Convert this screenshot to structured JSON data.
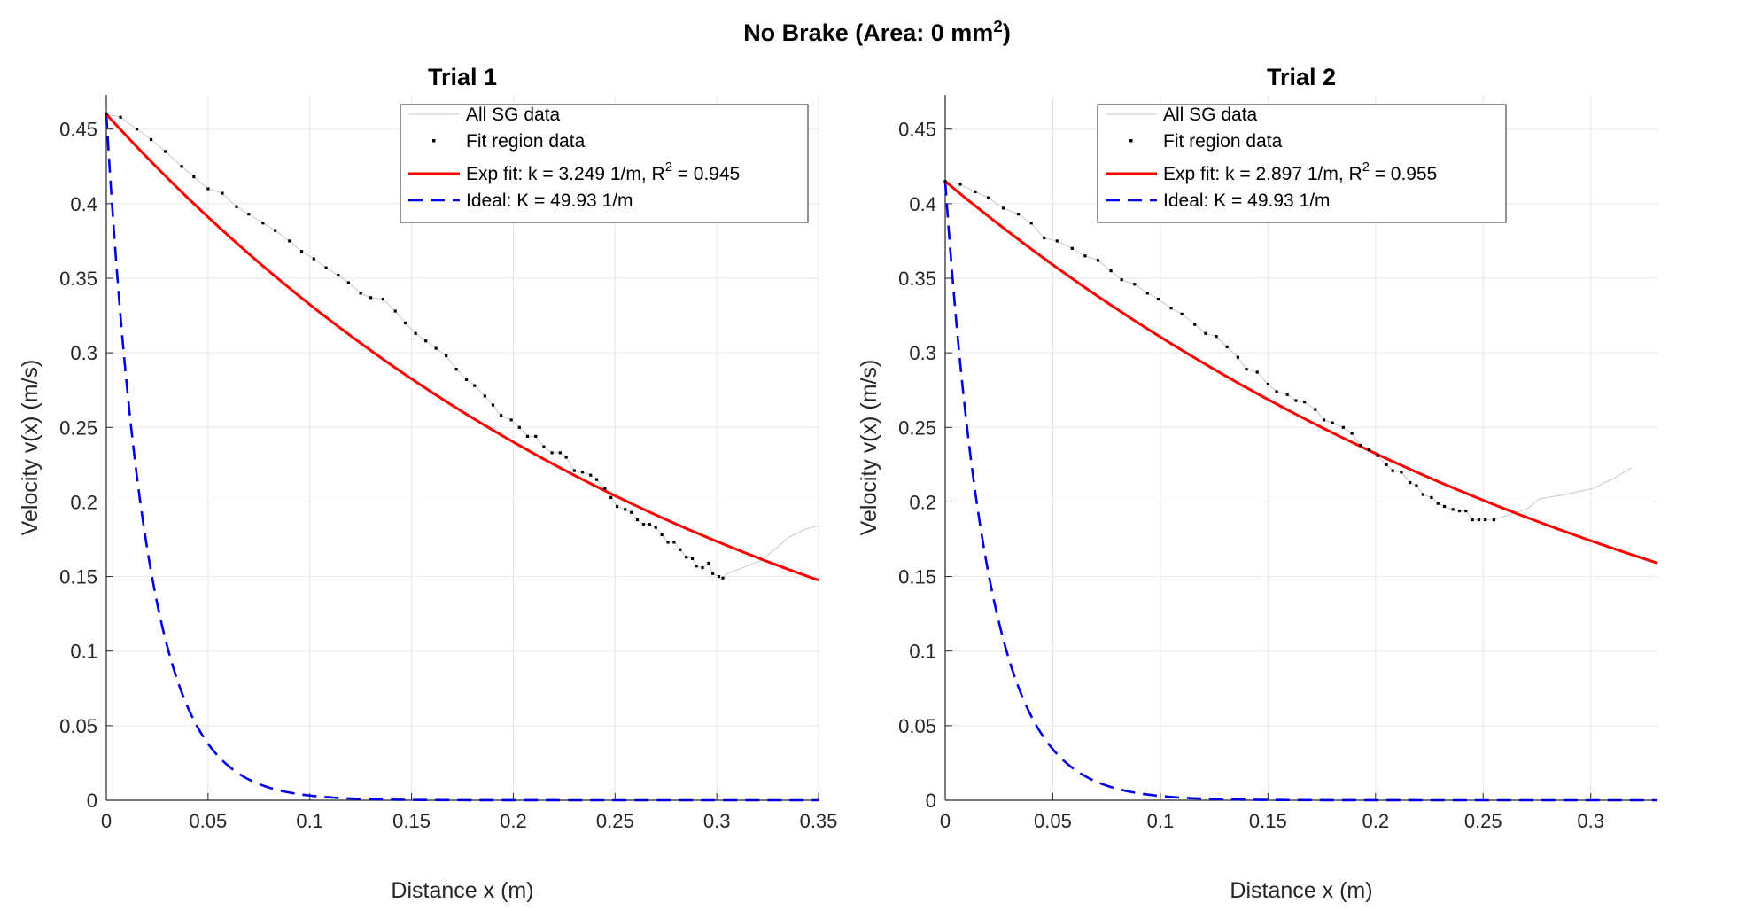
{
  "figure_title": "No Brake (Area: 0 mm^2)",
  "chart_data": [
    {
      "type": "line",
      "title": "Trial 1",
      "xlabel": "Distance x (m)",
      "ylabel": "Velocity v(x) (m/s)",
      "xlim": [
        0,
        0.35
      ],
      "ylim": [
        0,
        0.473
      ],
      "xticks": [
        "0",
        "0.05",
        "0.1",
        "0.15",
        "0.2",
        "0.25",
        "0.3",
        "0.35"
      ],
      "yticks": [
        "0",
        "0.05",
        "0.1",
        "0.15",
        "0.2",
        "0.25",
        "0.3",
        "0.35",
        "0.4",
        "0.45"
      ],
      "grid": true,
      "legend_placement": "top-right",
      "fit": {
        "v0": 0.46,
        "k": 3.249,
        "r2": 0.945
      },
      "ideal": {
        "v0": 0.46,
        "K": 49.93
      },
      "fit_region": {
        "x": [
          0,
          0.007,
          0.015,
          0.022,
          0.029,
          0.037,
          0.043,
          0.05,
          0.057,
          0.064,
          0.07,
          0.077,
          0.083,
          0.09,
          0.096,
          0.102,
          0.108,
          0.114,
          0.119,
          0.125,
          0.13,
          0.136,
          0.142,
          0.147,
          0.152,
          0.157,
          0.162,
          0.167,
          0.172,
          0.177,
          0.181,
          0.186,
          0.19,
          0.194,
          0.199,
          0.203,
          0.207,
          0.211,
          0.215,
          0.219,
          0.223,
          0.226,
          0.23,
          0.234,
          0.238,
          0.241,
          0.245,
          0.248,
          0.251,
          0.255,
          0.258,
          0.261,
          0.264,
          0.267,
          0.27,
          0.273,
          0.276,
          0.279,
          0.282,
          0.285,
          0.288,
          0.29,
          0.293,
          0.296,
          0.298,
          0.301,
          0.303
        ],
        "y": [
          0.46,
          0.458,
          0.45,
          0.443,
          0.435,
          0.425,
          0.418,
          0.41,
          0.407,
          0.398,
          0.393,
          0.387,
          0.382,
          0.375,
          0.368,
          0.363,
          0.357,
          0.352,
          0.347,
          0.34,
          0.337,
          0.336,
          0.328,
          0.32,
          0.313,
          0.308,
          0.303,
          0.298,
          0.289,
          0.282,
          0.278,
          0.271,
          0.265,
          0.258,
          0.255,
          0.25,
          0.244,
          0.244,
          0.237,
          0.233,
          0.233,
          0.23,
          0.221,
          0.22,
          0.218,
          0.215,
          0.209,
          0.203,
          0.197,
          0.195,
          0.193,
          0.188,
          0.185,
          0.185,
          0.183,
          0.178,
          0.173,
          0.173,
          0.168,
          0.163,
          0.162,
          0.157,
          0.156,
          0.159,
          0.152,
          0.15,
          0.149
        ]
      },
      "sg_tail": {
        "x": [
          0.303,
          0.305,
          0.313,
          0.322,
          0.33,
          0.335,
          0.344,
          0.35
        ],
        "y": [
          0.149,
          0.152,
          0.156,
          0.161,
          0.17,
          0.176,
          0.182,
          0.184
        ]
      },
      "legend": [
        "All SG data",
        "Fit region data",
        "Exp fit: k = 3.249 1/m, R^2 = 0.945",
        "Ideal: K = 49.93 1/m"
      ]
    },
    {
      "type": "line",
      "title": "Trial 2",
      "xlabel": "Distance x (m)",
      "ylabel": "Velocity v(x) (m/s)",
      "xlim": [
        0,
        0.331
      ],
      "ylim": [
        0,
        0.473
      ],
      "xticks": [
        "0",
        "0.05",
        "0.1",
        "0.15",
        "0.2",
        "0.25",
        "0.3"
      ],
      "yticks": [
        "0",
        "0.05",
        "0.1",
        "0.15",
        "0.2",
        "0.25",
        "0.3",
        "0.35",
        "0.4",
        "0.45"
      ],
      "grid": true,
      "legend_placement": "top-center",
      "fit": {
        "v0": 0.415,
        "k": 2.897,
        "r2": 0.955
      },
      "ideal": {
        "v0": 0.415,
        "K": 49.93
      },
      "fit_region": {
        "x": [
          0,
          0.007,
          0.014,
          0.02,
          0.027,
          0.034,
          0.04,
          0.046,
          0.052,
          0.059,
          0.065,
          0.071,
          0.077,
          0.082,
          0.088,
          0.094,
          0.099,
          0.105,
          0.11,
          0.116,
          0.121,
          0.126,
          0.131,
          0.136,
          0.14,
          0.145,
          0.15,
          0.154,
          0.159,
          0.163,
          0.167,
          0.172,
          0.176,
          0.18,
          0.185,
          0.189,
          0.193,
          0.197,
          0.201,
          0.205,
          0.208,
          0.212,
          0.216,
          0.219,
          0.222,
          0.226,
          0.229,
          0.232,
          0.236,
          0.239,
          0.242,
          0.245,
          0.248,
          0.251,
          0.255
        ],
        "y": [
          0.415,
          0.413,
          0.408,
          0.404,
          0.397,
          0.393,
          0.387,
          0.377,
          0.375,
          0.37,
          0.365,
          0.362,
          0.355,
          0.349,
          0.346,
          0.34,
          0.336,
          0.33,
          0.326,
          0.319,
          0.313,
          0.311,
          0.304,
          0.297,
          0.289,
          0.287,
          0.279,
          0.274,
          0.272,
          0.268,
          0.267,
          0.262,
          0.255,
          0.253,
          0.25,
          0.246,
          0.238,
          0.235,
          0.231,
          0.225,
          0.221,
          0.22,
          0.213,
          0.211,
          0.205,
          0.203,
          0.199,
          0.197,
          0.195,
          0.194,
          0.194,
          0.188,
          0.188,
          0.188,
          0.188
        ]
      },
      "sg_tail": {
        "x": [
          0.255,
          0.259,
          0.27,
          0.276,
          0.288,
          0.301,
          0.311,
          0.319
        ],
        "y": [
          0.188,
          0.19,
          0.195,
          0.202,
          0.205,
          0.209,
          0.216,
          0.223
        ]
      },
      "legend": [
        "All SG data",
        "Fit region data",
        "Exp fit: k = 2.897 1/m, R^2 = 0.955",
        "Ideal: K = 49.93 1/m"
      ]
    }
  ],
  "colors": {
    "fit": "#ff0000",
    "ideal": "#0000e6",
    "points": "#000000",
    "sg": "#c8c8c8",
    "grid": "#e6e6e6",
    "axis": "#262626"
  }
}
